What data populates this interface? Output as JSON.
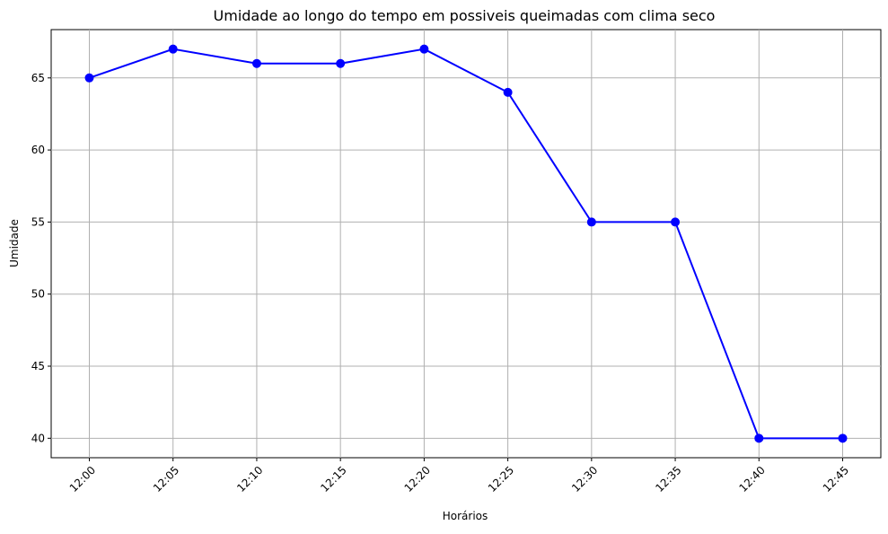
{
  "chart_data": {
    "type": "line",
    "title": "Umidade ao longo do tempo em possiveis queimadas com clima seco",
    "xlabel": "Horários",
    "ylabel": "Umidade",
    "categories": [
      "12:00",
      "12:05",
      "12:10",
      "12:15",
      "12:20",
      "12:25",
      "12:30",
      "12:35",
      "12:40",
      "12:45"
    ],
    "series": [
      {
        "values": [
          65,
          67,
          66,
          66,
          67,
          64,
          55,
          55,
          40,
          40
        ],
        "color": "#0000ff",
        "marker": "circle"
      }
    ],
    "yticks": [
      40,
      45,
      50,
      55,
      60,
      65
    ],
    "ylim": [
      38.65,
      68.35
    ],
    "grid": true,
    "x_tick_rotation": 45
  }
}
